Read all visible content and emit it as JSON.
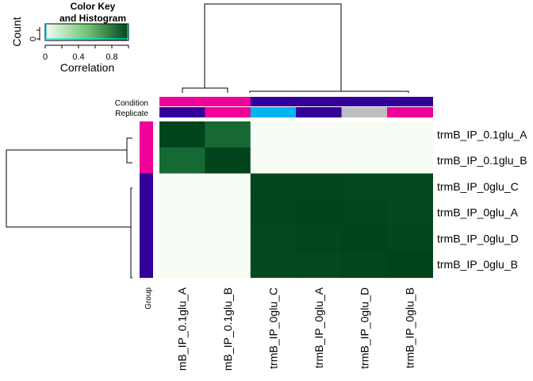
{
  "chart_data": {
    "type": "heatmap",
    "title": "",
    "xlabel": "",
    "ylabel": "",
    "row_labels": [
      "trmB_IP_0.1glu_A",
      "trmB_IP_0.1glu_B",
      "trmB_IP_0glu_C",
      "trmB_IP_0glu_A",
      "trmB_IP_0glu_D",
      "trmB_IP_0glu_B"
    ],
    "col_labels": [
      "mB_IP_0.1glu_A",
      "mB_IP_0.1glu_B",
      "trmB_IP_0glu_C",
      "trmB_IP_0glu_A",
      "trmB_IP_0glu_D",
      "trmB_IP_0glu_B"
    ],
    "values": [
      [
        1.0,
        0.82,
        0.0,
        0.0,
        0.0,
        0.0
      ],
      [
        0.82,
        1.0,
        0.0,
        0.0,
        0.0,
        0.0
      ],
      [
        0.0,
        0.0,
        0.99,
        0.99,
        0.98,
        0.98
      ],
      [
        0.0,
        0.0,
        0.99,
        1.0,
        0.99,
        0.98
      ],
      [
        0.0,
        0.0,
        0.98,
        0.99,
        1.0,
        0.99
      ],
      [
        0.0,
        0.0,
        0.98,
        0.98,
        0.99,
        1.0
      ]
    ],
    "color_scale": {
      "low": "#f7fcf5",
      "mid": "#41ab5d",
      "high": "#00441b",
      "range": [
        0,
        1
      ]
    },
    "col_annotations": {
      "labels": [
        "Condition",
        "Replicate"
      ],
      "condition_colors": [
        "#ee0099",
        "#ee0099",
        "#330099",
        "#330099",
        "#330099",
        "#330099"
      ],
      "replicate_colors": [
        "#330099",
        "#ee0099",
        "#00b4ee",
        "#330099",
        "#bebebe",
        "#ee0099"
      ]
    },
    "row_annotations": {
      "label": "Group",
      "group_colors": [
        "#ee0099",
        "#ee0099",
        "#330099",
        "#330099",
        "#330099",
        "#330099"
      ]
    },
    "color_key": {
      "title_line1": "Color Key",
      "title_line2": "and Histogram",
      "xlabel": "Correlation",
      "ylabel": "Count",
      "x_ticks": [
        "0",
        "0.4",
        "0.8"
      ],
      "y_ticks": [
        "0"
      ]
    }
  }
}
